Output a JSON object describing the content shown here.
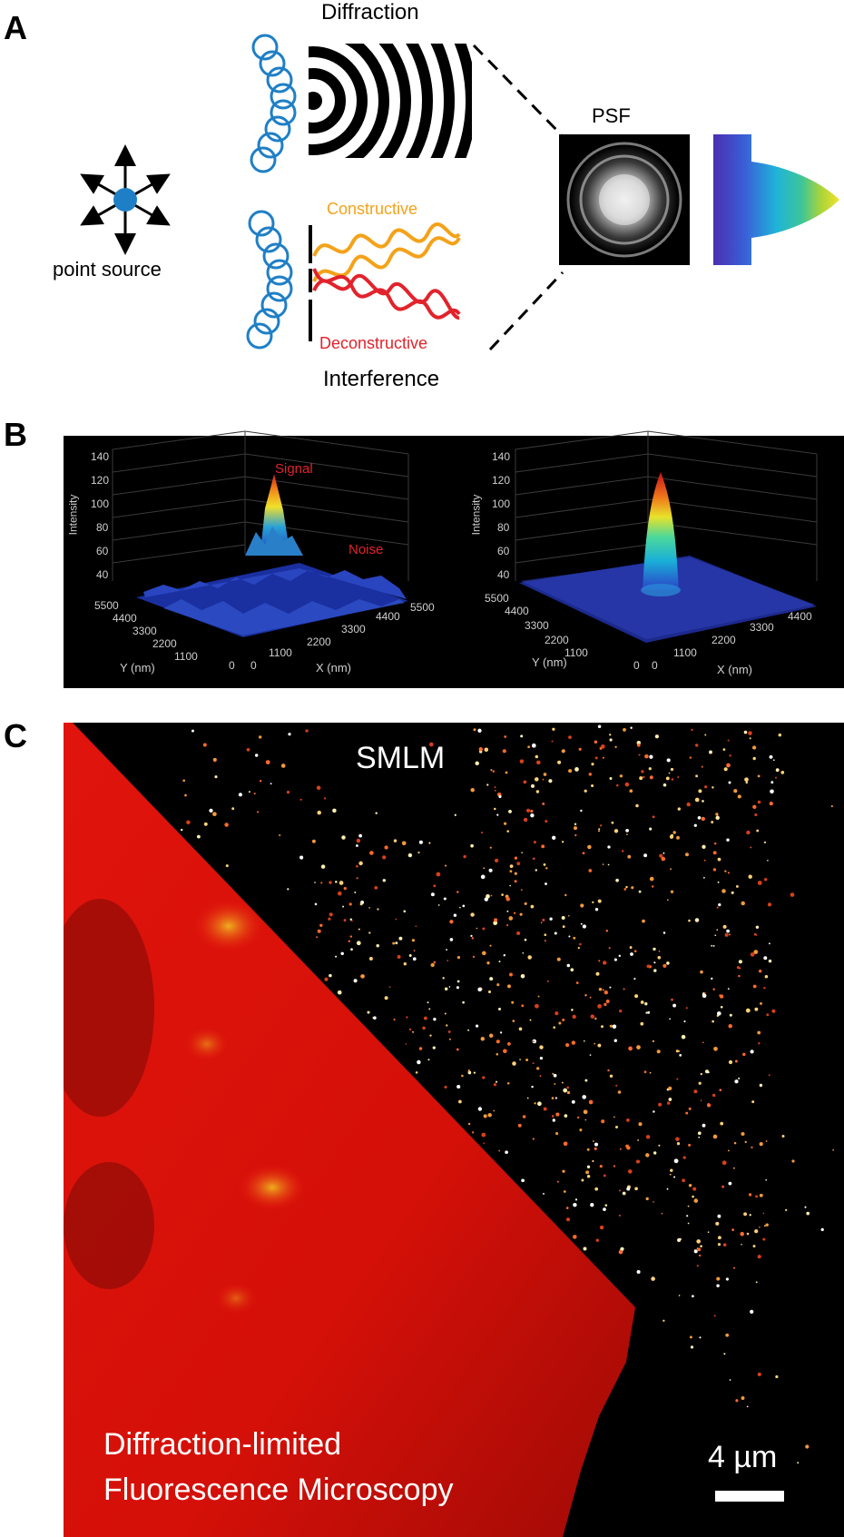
{
  "panels": {
    "a": "A",
    "b": "B",
    "c": "C"
  },
  "panel_a": {
    "point_source": "point source",
    "diffraction": "Diffraction",
    "psf": "PSF",
    "constructive": "Constructive",
    "deconstructive": "Deconstructive",
    "interference": "Interference",
    "colors": {
      "blue": "#1f7fc6",
      "orange": "#f4a21a",
      "red": "#e2232b"
    }
  },
  "panel_b": {
    "left_plot": {
      "signal": "Signal",
      "noise": "Noise",
      "zlabel": "Intensity",
      "ylabel": "Y (nm)",
      "xlabel": "X (nm)",
      "z_ticks": [
        "140",
        "120",
        "100",
        "80",
        "60",
        "40"
      ],
      "y_ticks": [
        "5500",
        "4400",
        "3300",
        "2200",
        "1100",
        "0"
      ],
      "x_ticks": [
        "0",
        "1100",
        "2200",
        "3300",
        "4400",
        "5500"
      ]
    },
    "right_plot": {
      "zlabel": "Intensity",
      "ylabel": "Y (nm)",
      "xlabel": "X (nm)",
      "z_ticks": [
        "140",
        "120",
        "100",
        "80",
        "60",
        "40"
      ],
      "y_ticks": [
        "5500",
        "4400",
        "3300",
        "2200",
        "1100",
        "0"
      ],
      "x_ticks": [
        "0",
        "1100",
        "2200",
        "3300",
        "4400"
      ]
    }
  },
  "panel_c": {
    "smlm": "SMLM",
    "diffraction_line1": "Diffraction-limited",
    "diffraction_line2": "Fluorescence Microscopy",
    "scale_bar": "4 µm"
  }
}
